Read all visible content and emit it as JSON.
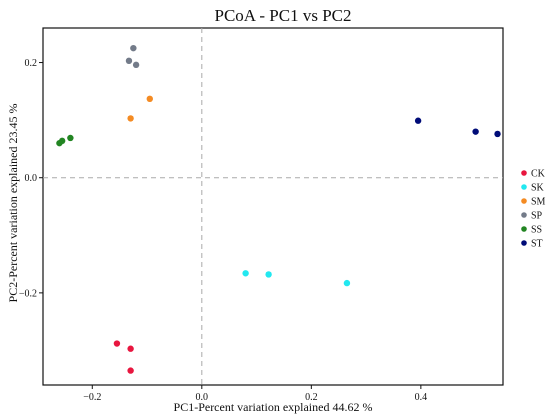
{
  "chart_data": {
    "type": "scatter",
    "title": "PCoA - PC1 vs PC2",
    "xlabel": "PC1-Percent variation explained 44.62 %",
    "ylabel": "PC2-Percent variation explained 23.45 %",
    "xlim": [
      -0.29,
      0.55
    ],
    "ylim": [
      -0.36,
      0.26
    ],
    "xticks": [
      -0.2,
      0.0,
      0.2,
      0.4
    ],
    "xtick_labels": [
      "−0.2",
      "0.0",
      "0.2",
      "0.4"
    ],
    "yticks": [
      -0.2,
      0.0,
      0.2
    ],
    "ytick_labels": [
      "−0.2",
      "0.0",
      "0.2"
    ],
    "reference_lines": {
      "x": 0,
      "y": 0,
      "style": "dashed"
    },
    "legend": {
      "position": "right"
    },
    "series": [
      {
        "name": "CK",
        "color": "#e8163f",
        "points": [
          [
            -0.155,
            -0.288
          ],
          [
            -0.13,
            -0.297
          ],
          [
            -0.13,
            -0.335
          ]
        ]
      },
      {
        "name": "SK",
        "color": "#22e8f0",
        "points": [
          [
            0.08,
            -0.166
          ],
          [
            0.122,
            -0.168
          ],
          [
            0.265,
            -0.183
          ]
        ]
      },
      {
        "name": "SM",
        "color": "#f48b23",
        "points": [
          [
            -0.095,
            0.137
          ],
          [
            -0.13,
            0.103
          ]
        ]
      },
      {
        "name": "SP",
        "color": "#737b89",
        "points": [
          [
            -0.125,
            0.225
          ],
          [
            -0.133,
            0.203
          ],
          [
            -0.12,
            0.196
          ]
        ]
      },
      {
        "name": "SS",
        "color": "#228522",
        "points": [
          [
            -0.26,
            0.06
          ],
          [
            -0.255,
            0.064
          ],
          [
            -0.24,
            0.069
          ]
        ]
      },
      {
        "name": "ST",
        "color": "#000c78",
        "points": [
          [
            0.395,
            0.099
          ],
          [
            0.5,
            0.08
          ],
          [
            0.54,
            0.076
          ]
        ]
      }
    ]
  }
}
